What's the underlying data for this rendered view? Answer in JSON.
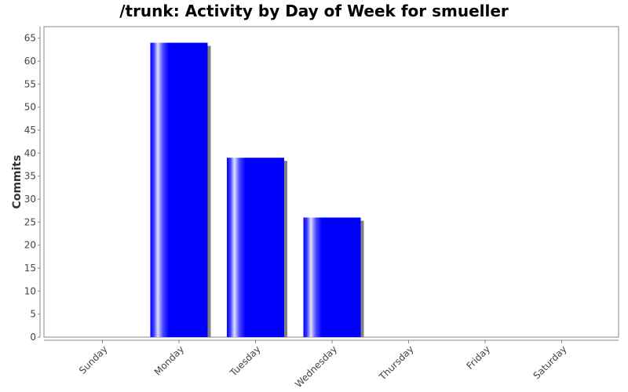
{
  "chart_data": {
    "type": "bar",
    "title": "/trunk: Activity by Day of Week for smueller",
    "xlabel": "",
    "ylabel": "Commits",
    "categories": [
      "Sunday",
      "Monday",
      "Tuesday",
      "Wednesday",
      "Thursday",
      "Friday",
      "Saturday"
    ],
    "series": [
      {
        "values": [
          0,
          64,
          39,
          26,
          0,
          0,
          0
        ]
      }
    ],
    "ylim": [
      0,
      67.5
    ],
    "yticks": [
      0,
      5,
      10,
      15,
      20,
      25,
      30,
      35,
      40,
      45,
      50,
      55,
      60,
      65
    ],
    "grid": false,
    "legend": "none",
    "colors": {
      "bar": "#0000ff",
      "bar_highlight": "#d8d8ff",
      "shadow": "#808080",
      "plot_border": "#888888"
    }
  }
}
